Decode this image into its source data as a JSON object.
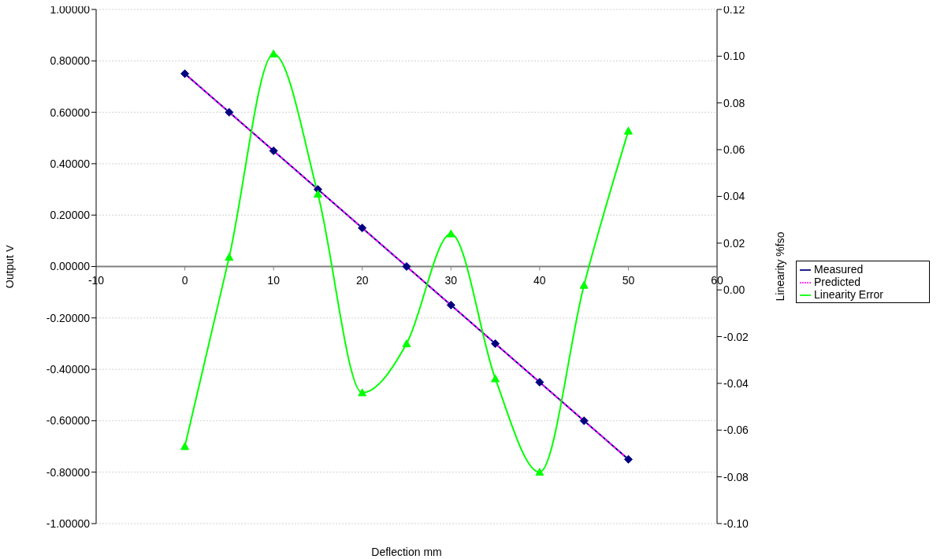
{
  "chart_data": {
    "type": "line",
    "xlabel": "Deflection mm",
    "ylabel": "Output V",
    "y2label": "Linearity %fso",
    "x": [
      0,
      5,
      10,
      15,
      20,
      25,
      30,
      35,
      40,
      45,
      50
    ],
    "xlim": [
      -10,
      60
    ],
    "xticks": [
      -10,
      0,
      10,
      20,
      30,
      40,
      50,
      60
    ],
    "ylim": [
      -1,
      1
    ],
    "yticks": [
      {
        "value": -1,
        "label": "-1.00000"
      },
      {
        "value": -0.8,
        "label": "-0.80000"
      },
      {
        "value": -0.6,
        "label": "-0.60000"
      },
      {
        "value": -0.4,
        "label": "-0.40000"
      },
      {
        "value": -0.2,
        "label": "-0.20000"
      },
      {
        "value": 0,
        "label": "0.00000"
      },
      {
        "value": 0.2,
        "label": "0.20000"
      },
      {
        "value": 0.4,
        "label": "0.40000"
      },
      {
        "value": 0.6,
        "label": "0.60000"
      },
      {
        "value": 0.8,
        "label": "0.80000"
      },
      {
        "value": 1,
        "label": "1.00000"
      }
    ],
    "y2lim": [
      -0.1,
      0.12
    ],
    "y2ticks": [
      {
        "value": -0.1,
        "label": "-0.10"
      },
      -0.08,
      -0.06,
      -0.04,
      -0.02,
      {
        "value": 0,
        "label": "0.00"
      },
      0.02,
      0.04,
      0.06,
      0.08,
      {
        "value": 0.1,
        "label": "0.10"
      },
      0.12
    ],
    "grid": "y",
    "legend": "right",
    "series": [
      {
        "name": "Measured",
        "color": "#000080",
        "marker": "diamond",
        "line_style": "solid",
        "values": [
          0.75,
          0.6,
          0.45,
          0.3,
          0.15,
          0,
          -0.15,
          -0.3,
          -0.45,
          -0.6,
          -0.75
        ]
      },
      {
        "name": "Predicted",
        "color": "#ff00ff",
        "marker": "none",
        "line_style": "dashed",
        "values": [
          0.75,
          0.6,
          0.45,
          0.3,
          0.15,
          0,
          -0.15,
          -0.3,
          -0.45,
          -0.6,
          -0.75
        ]
      },
      {
        "name": "Linearity Error",
        "color": "#00ff00",
        "marker": "triangle",
        "line_style": "solid",
        "axis": "y2",
        "values": [
          -0.067,
          0.014,
          0.101,
          0.041,
          -0.044,
          -0.023,
          0.024,
          -0.038,
          -0.078,
          0.002,
          0.068
        ]
      }
    ]
  }
}
